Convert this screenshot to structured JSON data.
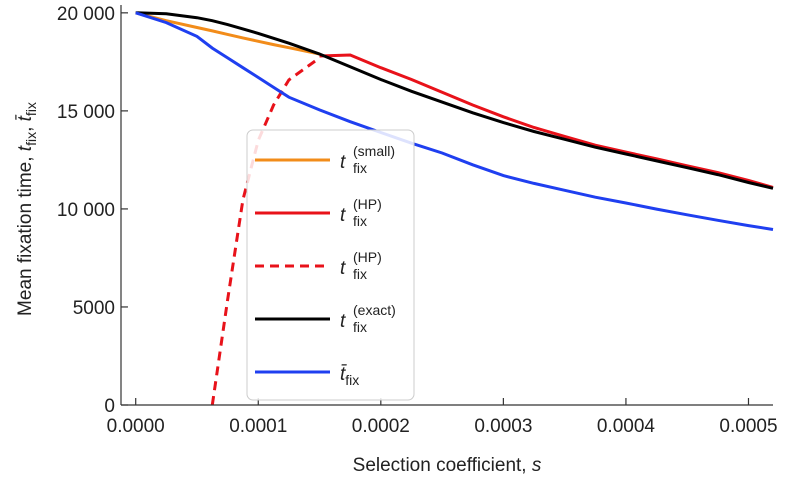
{
  "chart_data": {
    "type": "line",
    "xlabel": [
      "Selection coefficient, ",
      "s"
    ],
    "ylabel": [
      "Mean fixation time, ",
      "t",
      "fix",
      ", ",
      "t̄",
      "fix"
    ],
    "x": [
      0,
      2.5e-05,
      5e-05,
      6.25e-05,
      7.5e-05,
      8.75e-05,
      0.0001,
      0.0001125,
      0.000125,
      0.00015,
      0.000175,
      0.0002,
      0.000225,
      0.00025,
      0.000275,
      0.0003,
      0.000325,
      0.00035,
      0.000375,
      0.0004,
      0.000425,
      0.00045,
      0.000475,
      0.0005,
      0.00052
    ],
    "series": [
      {
        "name": "t",
        "subscript": "fix",
        "superscript": "(small)",
        "color": "#f28c1a",
        "dashed": false,
        "values": [
          20000,
          19600,
          19250,
          19080,
          18900,
          18720,
          18550,
          18380,
          18220,
          17900,
          null,
          null,
          null,
          null,
          null,
          null,
          null,
          null,
          null,
          null,
          null,
          null,
          null,
          null,
          null
        ]
      },
      {
        "name": "t",
        "subscript": "fix",
        "superscript": "(HP)",
        "color": "#e8121a",
        "dashed": false,
        "values": [
          null,
          null,
          null,
          null,
          null,
          null,
          null,
          null,
          null,
          17800,
          17850,
          17200,
          16600,
          15950,
          15300,
          14700,
          14150,
          13700,
          13250,
          12900,
          12550,
          12200,
          11850,
          11450,
          11100
        ]
      },
      {
        "name": "t",
        "subscript": "fix",
        "superscript": "(HP)",
        "color": "#e8121a",
        "dashed": true,
        "values": [
          null,
          null,
          null,
          0,
          5360,
          10460,
          13500,
          15300,
          16580,
          17700,
          null,
          null,
          null,
          null,
          null,
          null,
          null,
          null,
          null,
          null,
          null,
          null,
          null,
          null,
          null
        ]
      },
      {
        "name": "t",
        "subscript": "fix",
        "superscript": "(exact)",
        "color": "#000000",
        "dashed": false,
        "values": [
          20000,
          19950,
          19750,
          19600,
          19400,
          19180,
          18950,
          18700,
          18450,
          17900,
          17250,
          16600,
          16000,
          15450,
          14900,
          14400,
          13950,
          13550,
          13150,
          12800,
          12450,
          12100,
          11750,
          11350,
          11050
        ]
      },
      {
        "name": "t̄",
        "subscript": "fix",
        "color": "#1f3ff0",
        "dashed": false,
        "values": [
          20000,
          19500,
          18800,
          18200,
          17700,
          17200,
          16700,
          16200,
          15700,
          15050,
          14450,
          13900,
          13350,
          12850,
          12250,
          11700,
          11300,
          10950,
          10600,
          10300,
          9990,
          9700,
          9420,
          9150,
          8950
        ]
      }
    ],
    "xlim": [
      -1.2e-05,
      0.00052
    ],
    "ylim": [
      0,
      20400
    ],
    "xticks": [
      {
        "value": 0,
        "label": "0.0000"
      },
      {
        "value": 0.0001,
        "label": "0.0001"
      },
      {
        "value": 0.0002,
        "label": "0.0002"
      },
      {
        "value": 0.0003,
        "label": "0.0003"
      },
      {
        "value": 0.0004,
        "label": "0.0004"
      },
      {
        "value": 0.0005,
        "label": "0.0005"
      }
    ],
    "yticks": [
      0,
      5000,
      {
        "value": 10000,
        "label": "10 000"
      },
      {
        "value": 15000,
        "label": "15 000"
      },
      {
        "value": 20000,
        "label": "20 000"
      }
    ]
  }
}
